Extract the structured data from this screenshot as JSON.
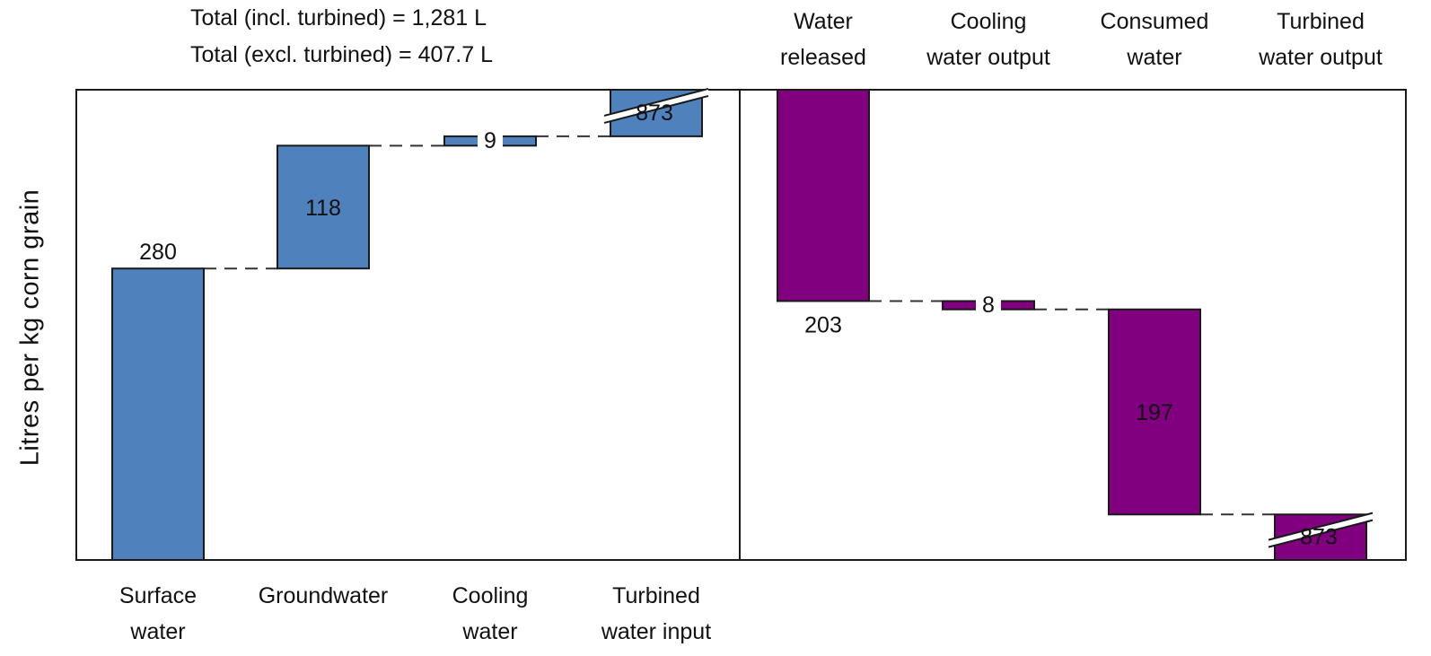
{
  "chart_data": [
    {
      "type": "bar",
      "subtype": "waterfall",
      "panel": "inputs",
      "color": "#4f81bd",
      "ylabel": "Litres per kg corn grain",
      "totals_annotation": [
        "Total (incl. turbined) = 1,281 L",
        "Total (excl. turbined) = 407.7 L"
      ],
      "categories": [
        [
          "Surface",
          "water"
        ],
        [
          "Groundwater",
          ""
        ],
        [
          "Cooling",
          "water"
        ],
        [
          "Turbined",
          "water input"
        ]
      ],
      "values": [
        280,
        118,
        9,
        873
      ],
      "data_labels": [
        "280",
        "118",
        "9",
        "873"
      ],
      "axis_break_on": "Turbined water input"
    },
    {
      "type": "bar",
      "subtype": "waterfall",
      "panel": "outputs",
      "color": "#800080",
      "categories": [
        [
          "Water",
          "released"
        ],
        [
          "Cooling",
          "water output"
        ],
        [
          "Consumed",
          "water"
        ],
        [
          "Turbined",
          "water output"
        ]
      ],
      "values": [
        203,
        8,
        197,
        873
      ],
      "data_labels": [
        "203",
        "8",
        "197",
        "873"
      ],
      "axis_break_on": "Turbined water output"
    }
  ],
  "colors": {
    "inputs": "#4f81bd",
    "outputs": "#800080",
    "border": "#1a1a1a",
    "connector": "#333333"
  }
}
